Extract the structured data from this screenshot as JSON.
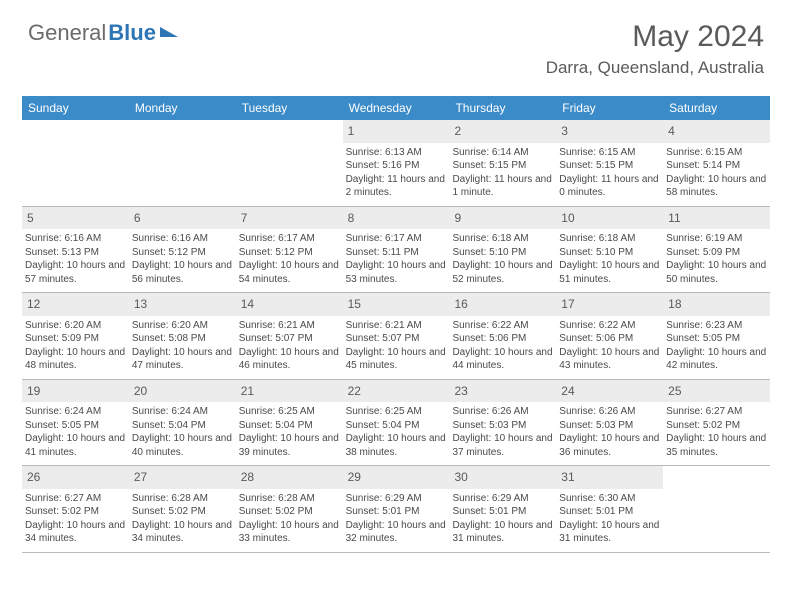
{
  "logo": {
    "part1": "General",
    "part2": "Blue"
  },
  "title": "May 2024",
  "location": "Darra, Queensland, Australia",
  "colors": {
    "header_bg": "#3b8bc9",
    "header_text": "#ffffff",
    "daynum_bg": "#ececec",
    "border": "#b8b8b8",
    "text": "#4a4a4a",
    "title_text": "#5a5a5a",
    "logo_gray": "#6b6b6b",
    "logo_blue": "#2e75b6"
  },
  "dow": [
    "Sunday",
    "Monday",
    "Tuesday",
    "Wednesday",
    "Thursday",
    "Friday",
    "Saturday"
  ],
  "weeks": [
    [
      {
        "n": "",
        "sr": "",
        "ss": "",
        "dl": ""
      },
      {
        "n": "",
        "sr": "",
        "ss": "",
        "dl": ""
      },
      {
        "n": "",
        "sr": "",
        "ss": "",
        "dl": ""
      },
      {
        "n": "1",
        "sr": "Sunrise: 6:13 AM",
        "ss": "Sunset: 5:16 PM",
        "dl": "Daylight: 11 hours and 2 minutes."
      },
      {
        "n": "2",
        "sr": "Sunrise: 6:14 AM",
        "ss": "Sunset: 5:15 PM",
        "dl": "Daylight: 11 hours and 1 minute."
      },
      {
        "n": "3",
        "sr": "Sunrise: 6:15 AM",
        "ss": "Sunset: 5:15 PM",
        "dl": "Daylight: 11 hours and 0 minutes."
      },
      {
        "n": "4",
        "sr": "Sunrise: 6:15 AM",
        "ss": "Sunset: 5:14 PM",
        "dl": "Daylight: 10 hours and 58 minutes."
      }
    ],
    [
      {
        "n": "5",
        "sr": "Sunrise: 6:16 AM",
        "ss": "Sunset: 5:13 PM",
        "dl": "Daylight: 10 hours and 57 minutes."
      },
      {
        "n": "6",
        "sr": "Sunrise: 6:16 AM",
        "ss": "Sunset: 5:12 PM",
        "dl": "Daylight: 10 hours and 56 minutes."
      },
      {
        "n": "7",
        "sr": "Sunrise: 6:17 AM",
        "ss": "Sunset: 5:12 PM",
        "dl": "Daylight: 10 hours and 54 minutes."
      },
      {
        "n": "8",
        "sr": "Sunrise: 6:17 AM",
        "ss": "Sunset: 5:11 PM",
        "dl": "Daylight: 10 hours and 53 minutes."
      },
      {
        "n": "9",
        "sr": "Sunrise: 6:18 AM",
        "ss": "Sunset: 5:10 PM",
        "dl": "Daylight: 10 hours and 52 minutes."
      },
      {
        "n": "10",
        "sr": "Sunrise: 6:18 AM",
        "ss": "Sunset: 5:10 PM",
        "dl": "Daylight: 10 hours and 51 minutes."
      },
      {
        "n": "11",
        "sr": "Sunrise: 6:19 AM",
        "ss": "Sunset: 5:09 PM",
        "dl": "Daylight: 10 hours and 50 minutes."
      }
    ],
    [
      {
        "n": "12",
        "sr": "Sunrise: 6:20 AM",
        "ss": "Sunset: 5:09 PM",
        "dl": "Daylight: 10 hours and 48 minutes."
      },
      {
        "n": "13",
        "sr": "Sunrise: 6:20 AM",
        "ss": "Sunset: 5:08 PM",
        "dl": "Daylight: 10 hours and 47 minutes."
      },
      {
        "n": "14",
        "sr": "Sunrise: 6:21 AM",
        "ss": "Sunset: 5:07 PM",
        "dl": "Daylight: 10 hours and 46 minutes."
      },
      {
        "n": "15",
        "sr": "Sunrise: 6:21 AM",
        "ss": "Sunset: 5:07 PM",
        "dl": "Daylight: 10 hours and 45 minutes."
      },
      {
        "n": "16",
        "sr": "Sunrise: 6:22 AM",
        "ss": "Sunset: 5:06 PM",
        "dl": "Daylight: 10 hours and 44 minutes."
      },
      {
        "n": "17",
        "sr": "Sunrise: 6:22 AM",
        "ss": "Sunset: 5:06 PM",
        "dl": "Daylight: 10 hours and 43 minutes."
      },
      {
        "n": "18",
        "sr": "Sunrise: 6:23 AM",
        "ss": "Sunset: 5:05 PM",
        "dl": "Daylight: 10 hours and 42 minutes."
      }
    ],
    [
      {
        "n": "19",
        "sr": "Sunrise: 6:24 AM",
        "ss": "Sunset: 5:05 PM",
        "dl": "Daylight: 10 hours and 41 minutes."
      },
      {
        "n": "20",
        "sr": "Sunrise: 6:24 AM",
        "ss": "Sunset: 5:04 PM",
        "dl": "Daylight: 10 hours and 40 minutes."
      },
      {
        "n": "21",
        "sr": "Sunrise: 6:25 AM",
        "ss": "Sunset: 5:04 PM",
        "dl": "Daylight: 10 hours and 39 minutes."
      },
      {
        "n": "22",
        "sr": "Sunrise: 6:25 AM",
        "ss": "Sunset: 5:04 PM",
        "dl": "Daylight: 10 hours and 38 minutes."
      },
      {
        "n": "23",
        "sr": "Sunrise: 6:26 AM",
        "ss": "Sunset: 5:03 PM",
        "dl": "Daylight: 10 hours and 37 minutes."
      },
      {
        "n": "24",
        "sr": "Sunrise: 6:26 AM",
        "ss": "Sunset: 5:03 PM",
        "dl": "Daylight: 10 hours and 36 minutes."
      },
      {
        "n": "25",
        "sr": "Sunrise: 6:27 AM",
        "ss": "Sunset: 5:02 PM",
        "dl": "Daylight: 10 hours and 35 minutes."
      }
    ],
    [
      {
        "n": "26",
        "sr": "Sunrise: 6:27 AM",
        "ss": "Sunset: 5:02 PM",
        "dl": "Daylight: 10 hours and 34 minutes."
      },
      {
        "n": "27",
        "sr": "Sunrise: 6:28 AM",
        "ss": "Sunset: 5:02 PM",
        "dl": "Daylight: 10 hours and 34 minutes."
      },
      {
        "n": "28",
        "sr": "Sunrise: 6:28 AM",
        "ss": "Sunset: 5:02 PM",
        "dl": "Daylight: 10 hours and 33 minutes."
      },
      {
        "n": "29",
        "sr": "Sunrise: 6:29 AM",
        "ss": "Sunset: 5:01 PM",
        "dl": "Daylight: 10 hours and 32 minutes."
      },
      {
        "n": "30",
        "sr": "Sunrise: 6:29 AM",
        "ss": "Sunset: 5:01 PM",
        "dl": "Daylight: 10 hours and 31 minutes."
      },
      {
        "n": "31",
        "sr": "Sunrise: 6:30 AM",
        "ss": "Sunset: 5:01 PM",
        "dl": "Daylight: 10 hours and 31 minutes."
      },
      {
        "n": "",
        "sr": "",
        "ss": "",
        "dl": ""
      }
    ]
  ]
}
